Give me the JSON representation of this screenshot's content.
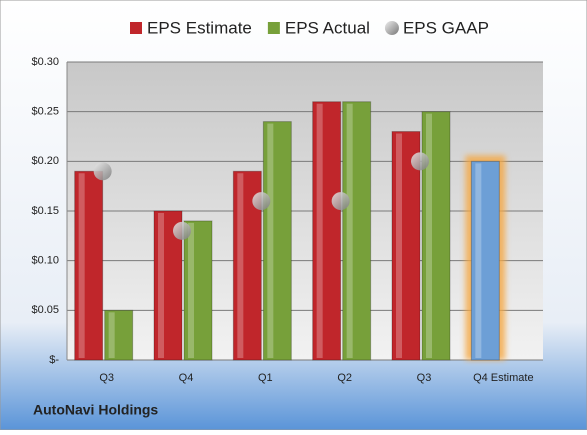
{
  "chart_data": {
    "type": "bar",
    "title": "AutoNavi Holdings",
    "categories": [
      "Q3",
      "Q4",
      "Q1",
      "Q2",
      "Q3",
      "Q4 Estimate"
    ],
    "series": [
      {
        "name": "EPS Estimate",
        "color": "#c0262b",
        "colors": [
          "#c0262b",
          "#c0262b",
          "#c0262b",
          "#c0262b",
          "#c0262b",
          "#6d9fd6"
        ],
        "values": [
          0.19,
          0.15,
          0.19,
          0.26,
          0.23,
          0.2
        ]
      },
      {
        "name": "EPS Actual",
        "color": "#77a03a",
        "values": [
          0.05,
          0.14,
          0.24,
          0.26,
          0.25,
          null
        ]
      },
      {
        "name": "EPS GAAP",
        "color": "#a8a8a8",
        "marker": "circle",
        "values": [
          0.19,
          0.13,
          0.16,
          0.16,
          0.2,
          null
        ]
      }
    ],
    "ylim": [
      0,
      0.3
    ],
    "yticks": [
      {
        "value": 0,
        "label": "$-"
      },
      {
        "value": 0.05,
        "label": "$0.05"
      },
      {
        "value": 0.1,
        "label": "$0.10"
      },
      {
        "value": 0.15,
        "label": "$0.15"
      },
      {
        "value": 0.2,
        "label": "$0.20"
      },
      {
        "value": 0.25,
        "label": "$0.25"
      },
      {
        "value": 0.3,
        "label": "$0.30"
      }
    ],
    "grid": true,
    "legend": "top"
  }
}
